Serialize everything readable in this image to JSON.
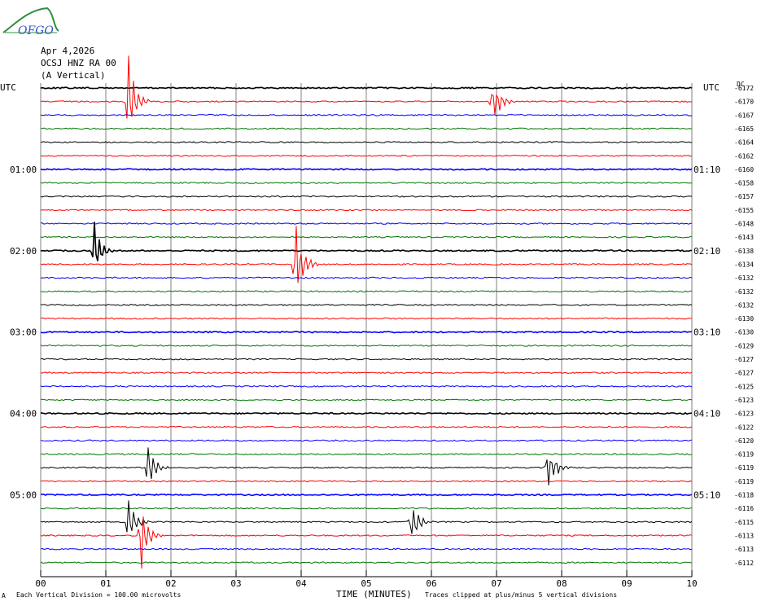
{
  "logo": {
    "text": "OFGO",
    "icon": "mountain-logo-icon"
  },
  "header": {
    "date": "Apr 4,2026",
    "station": "OCSJ HNZ RA 00",
    "component": "(A Vertical)"
  },
  "left_axis_label": "UTC",
  "right_axis_label": "UTC",
  "dc_label": "DC",
  "footer": {
    "scale_prefix": "A",
    "scale": "Each Vertical Division =  100.00 microvolts",
    "time_label": "TIME (MINUTES)",
    "clip_note": "Traces clipped at plus/minus 5 vertical divisions"
  },
  "colors": {
    "black": "#000000",
    "red": "#ff0000",
    "blue": "#0000ff",
    "green": "#007700",
    "grid": "#808080"
  },
  "chart_data": {
    "type": "line",
    "title": "",
    "xlabel": "TIME (MINUTES)",
    "ylabel": "UTC",
    "xlim": [
      0,
      10
    ],
    "x_ticks": [
      "00",
      "01",
      "02",
      "03",
      "04",
      "05",
      "06",
      "07",
      "08",
      "09",
      "10"
    ],
    "left_time_labels": [
      {
        "row": 6,
        "text": "01:00"
      },
      {
        "row": 12,
        "text": "02:00"
      },
      {
        "row": 18,
        "text": "03:00"
      },
      {
        "row": 24,
        "text": "04:00"
      },
      {
        "row": 30,
        "text": "05:00"
      }
    ],
    "right_time_labels": [
      {
        "row": 6,
        "text": "01:10"
      },
      {
        "row": 12,
        "text": "02:10"
      },
      {
        "row": 18,
        "text": "03:10"
      },
      {
        "row": 24,
        "text": "04:10"
      },
      {
        "row": 30,
        "text": "05:10"
      }
    ],
    "trace_colors": [
      "black",
      "red",
      "blue",
      "green"
    ],
    "dc_offsets": [
      "-6172",
      "-6170",
      "-6167",
      "-6165",
      "-6164",
      "-6162",
      "-6160",
      "-6158",
      "-6157",
      "-6155",
      "-6148",
      "-6143",
      "-6138",
      "-6134",
      "-6132",
      "-6132",
      "-6132",
      "-6130",
      "-6130",
      "-6129",
      "-6127",
      "-6127",
      "-6125",
      "-6123",
      "-6123",
      "-6122",
      "-6120",
      "-6119",
      "-6119",
      "-6119",
      "-6118",
      "-6116",
      "-6115",
      "-6113",
      "-6113",
      "-6112"
    ],
    "events": [
      {
        "row": 1,
        "minute": 1.35,
        "amplitude": 5
      },
      {
        "row": 1,
        "minute": 6.95,
        "amplitude": 2.5
      },
      {
        "row": 12,
        "minute": 0.82,
        "amplitude": 3
      },
      {
        "row": 13,
        "minute": 3.92,
        "amplitude": 5
      },
      {
        "row": 28,
        "minute": 1.65,
        "amplitude": 3
      },
      {
        "row": 28,
        "minute": 7.8,
        "amplitude": 2.5
      },
      {
        "row": 32,
        "minute": 1.35,
        "amplitude": 3
      },
      {
        "row": 32,
        "minute": 5.7,
        "amplitude": 2.5
      },
      {
        "row": 33,
        "minute": 1.55,
        "amplitude": 5
      }
    ]
  }
}
